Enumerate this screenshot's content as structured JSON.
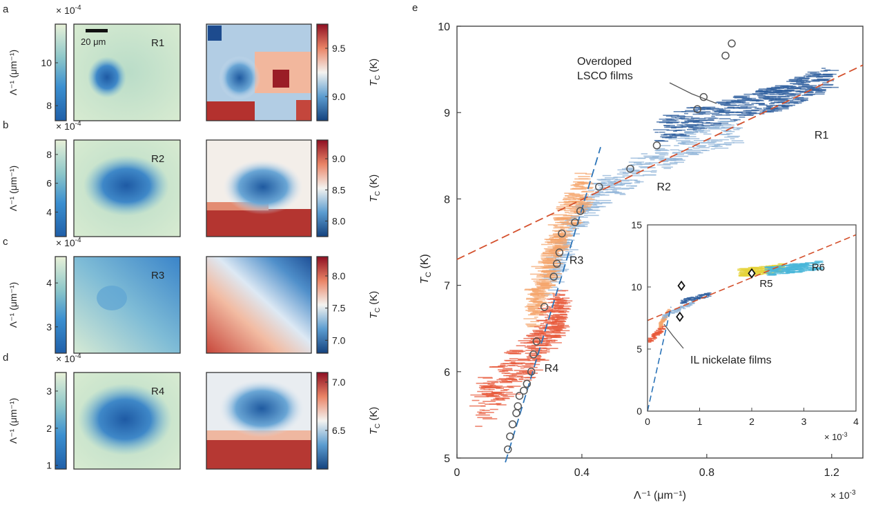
{
  "figure": {
    "panel_labels": [
      "a",
      "b",
      "c",
      "d",
      "e"
    ],
    "scale_bar_label": "20 μm",
    "left_colorbar_label": "Λ⁻¹ (μm⁻¹)",
    "right_colorbar_label": "T",
    "right_colorbar_label_sub": "C",
    "right_colorbar_label_unit": " (K)",
    "multiplier_prefix": "× 10",
    "multiplier_exp": "-4"
  },
  "maps": [
    {
      "panel": "a",
      "region": "R1",
      "lambda_ticks": [
        "10",
        "8"
      ],
      "lambda_range": [
        7.3,
        11.8
      ],
      "tc_ticks": [
        "9.5",
        "9.0"
      ],
      "tc_range": [
        8.75,
        9.75
      ]
    },
    {
      "panel": "b",
      "region": "R2",
      "lambda_ticks": [
        "8",
        "6",
        "4"
      ],
      "lambda_range": [
        2.3,
        9.0
      ],
      "tc_ticks": [
        "9.0",
        "8.5",
        "8.0"
      ],
      "tc_range": [
        7.75,
        9.3
      ]
    },
    {
      "panel": "c",
      "region": "R3",
      "lambda_ticks": [
        "4",
        "3"
      ],
      "lambda_range": [
        2.4,
        4.6
      ],
      "tc_ticks": [
        "8.0",
        "7.5",
        "7.0"
      ],
      "tc_range": [
        6.8,
        8.3
      ]
    },
    {
      "panel": "d",
      "region": "R4",
      "lambda_ticks": [
        "3",
        "2",
        "1"
      ],
      "lambda_range": [
        0.9,
        3.5
      ],
      "tc_ticks": [
        "7.0",
        "6.5"
      ],
      "tc_range": [
        6.1,
        7.1
      ]
    }
  ],
  "chart_data": [
    {
      "type": "scatter",
      "panel": "e",
      "xlabel": "Λ⁻¹ (μm⁻¹)",
      "ylabel": "T",
      "ylabel_sub": "C",
      "ylabel_unit": " (K)",
      "x_multiplier": "× 10",
      "x_multiplier_exp": "-3",
      "xlim": [
        0,
        1.3
      ],
      "ylim": [
        5,
        10
      ],
      "xticks": [
        0,
        0.4,
        0.8,
        1.2
      ],
      "xtick_labels": [
        "0",
        "0.4",
        "0.8",
        "1.2"
      ],
      "yticks": [
        5,
        6,
        7,
        8,
        9,
        10
      ],
      "ytick_labels": [
        "5",
        "6",
        "7",
        "8",
        "9",
        "10"
      ],
      "series": [
        {
          "name": "R1",
          "color": "#2f5f9e",
          "x_range": [
            0.65,
            1.2
          ],
          "y_range": [
            8.7,
            9.6
          ]
        },
        {
          "name": "R2",
          "color": "#8fb4d8",
          "x_range": [
            0.3,
            0.9
          ],
          "y_range": [
            7.0,
            8.8
          ]
        },
        {
          "name": "R3",
          "color": "#f5a56b",
          "x_range": [
            0.22,
            0.43
          ],
          "y_range": [
            6.7,
            8.2
          ]
        },
        {
          "name": "R4",
          "color": "#e8593a",
          "x_range": [
            0.07,
            0.34
          ],
          "y_range": [
            5.55,
            6.8
          ]
        }
      ],
      "lsco_films": {
        "label": "Overdoped LSCO films",
        "label_lines": [
          "Overdoped",
          "LSCO films"
        ],
        "points": [
          [
            0.163,
            5.1
          ],
          [
            0.17,
            5.25
          ],
          [
            0.178,
            5.39
          ],
          [
            0.19,
            5.52
          ],
          [
            0.195,
            5.6
          ],
          [
            0.2,
            5.72
          ],
          [
            0.214,
            5.78
          ],
          [
            0.224,
            5.86
          ],
          [
            0.238,
            6.0
          ],
          [
            0.245,
            6.2
          ],
          [
            0.255,
            6.35
          ],
          [
            0.28,
            6.75
          ],
          [
            0.31,
            7.1
          ],
          [
            0.32,
            7.25
          ],
          [
            0.328,
            7.38
          ],
          [
            0.336,
            7.6
          ],
          [
            0.378,
            7.73
          ],
          [
            0.395,
            7.86
          ],
          [
            0.455,
            8.14
          ],
          [
            0.555,
            8.35
          ],
          [
            0.64,
            8.62
          ],
          [
            0.77,
            9.04
          ],
          [
            0.79,
            9.18
          ],
          [
            0.86,
            9.66
          ],
          [
            0.88,
            9.8
          ]
        ]
      },
      "fit_lines": [
        {
          "name": "linear fit",
          "color": "#d4502c",
          "x": [
            0,
            1.3
          ],
          "y": [
            7.3,
            9.55
          ]
        },
        {
          "name": "underdoped fit",
          "color": "#2a73b8",
          "x": [
            0.155,
            0.46
          ],
          "y": [
            4.95,
            8.6
          ]
        }
      ],
      "region_labels": [
        {
          "text": "R1",
          "x": 1.145,
          "y": 8.7
        },
        {
          "text": "R2",
          "x": 0.64,
          "y": 8.1
        },
        {
          "text": "R3",
          "x": 0.36,
          "y": 7.25
        },
        {
          "text": "R4",
          "x": 0.28,
          "y": 6.0
        }
      ]
    },
    {
      "type": "scatter",
      "panel": "e-inset",
      "xlim": [
        0,
        4
      ],
      "ylim": [
        0,
        15
      ],
      "xticks": [
        0,
        1,
        2,
        3,
        4
      ],
      "xtick_labels": [
        "0",
        "1",
        "2",
        "3",
        "4"
      ],
      "yticks": [
        0,
        5,
        10,
        15
      ],
      "ytick_labels": [
        "0",
        "5",
        "10",
        "15"
      ],
      "x_multiplier": "× 10",
      "x_multiplier_exp": "-3",
      "series": [
        {
          "name": "R5",
          "color": "#e6d33a",
          "x_range": [
            1.8,
            2.6
          ],
          "y_range": [
            10.8,
            11.9
          ]
        },
        {
          "name": "R6",
          "color": "#49b6d9",
          "x_range": [
            2.3,
            3.3
          ],
          "y_range": [
            10.9,
            12.1
          ]
        }
      ],
      "il_nickelate_films": {
        "label": "IL nickelate films",
        "points": [
          [
            0.65,
            10.1
          ],
          [
            0.62,
            7.6
          ],
          [
            2.0,
            11.1
          ]
        ]
      },
      "fit_lines": [
        {
          "name": "linear fit",
          "color": "#d4502c",
          "x": [
            0,
            4
          ],
          "y": [
            7.3,
            14.2
          ]
        },
        {
          "name": "underdoped fit",
          "color": "#2a73b8",
          "x": [
            0,
            0.45
          ],
          "y": [
            0,
            8.4
          ]
        }
      ],
      "region_labels": [
        {
          "text": "R5",
          "x": 2.15,
          "y": 10.0
        },
        {
          "text": "R6",
          "x": 3.15,
          "y": 11.3
        }
      ]
    }
  ]
}
